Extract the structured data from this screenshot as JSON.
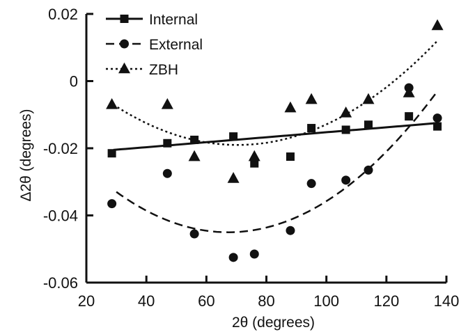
{
  "chart_data": {
    "type": "scatter",
    "title": "",
    "xlabel": "2θ (degrees)",
    "ylabel": "Δ2θ (degrees)",
    "xlim": [
      20,
      140
    ],
    "ylim": [
      -0.06,
      0.02
    ],
    "xticks": [
      20,
      40,
      60,
      80,
      100,
      120,
      140
    ],
    "xtick_labels": [
      "20",
      "40",
      "60",
      "80",
      "100",
      "120",
      "140"
    ],
    "yticks": [
      0.02,
      0,
      -0.02,
      -0.04,
      -0.06
    ],
    "ytick_labels": [
      "0.02",
      "0",
      "-0.02",
      "-0.04",
      "-0.06"
    ],
    "grid": false,
    "legend_position": "top-left",
    "series": [
      {
        "name": "Internal",
        "marker": "square",
        "line_style": "solid",
        "color": "#111111",
        "x": [
          28.5,
          47,
          56,
          69,
          76,
          88,
          95,
          106.5,
          114,
          127.5,
          137
        ],
        "y": [
          -0.0215,
          -0.0185,
          -0.0175,
          -0.0165,
          -0.0245,
          -0.0225,
          -0.014,
          -0.0145,
          -0.013,
          -0.0105,
          -0.0135
        ],
        "fit_x": [
          29,
          137
        ],
        "fit_y": [
          -0.0205,
          -0.0125
        ]
      },
      {
        "name": "External",
        "marker": "circle",
        "line_style": "dashed",
        "color": "#111111",
        "x": [
          28.5,
          47,
          56,
          69,
          76,
          88,
          95,
          106.5,
          114,
          127.5,
          137
        ],
        "y": [
          -0.0365,
          -0.0275,
          -0.0455,
          -0.0525,
          -0.0515,
          -0.0445,
          -0.0305,
          -0.0295,
          -0.0265,
          -0.002,
          -0.011
        ],
        "fit_x": [
          30,
          66,
          137
        ],
        "fit_y": [
          -0.033,
          -0.045,
          -0.003
        ]
      },
      {
        "name": "ZBH",
        "marker": "triangle",
        "line_style": "dotted",
        "color": "#111111",
        "x": [
          28.5,
          47,
          56,
          69,
          76,
          88,
          95,
          106.5,
          114,
          127.5,
          137
        ],
        "y": [
          -0.007,
          -0.007,
          -0.0225,
          -0.029,
          -0.0225,
          -0.008,
          -0.0055,
          -0.0095,
          -0.0055,
          -0.0035,
          0.0165
        ],
        "fit_x": [
          29,
          69,
          137
        ],
        "fit_y": [
          -0.007,
          -0.019,
          0.012
        ]
      }
    ]
  }
}
